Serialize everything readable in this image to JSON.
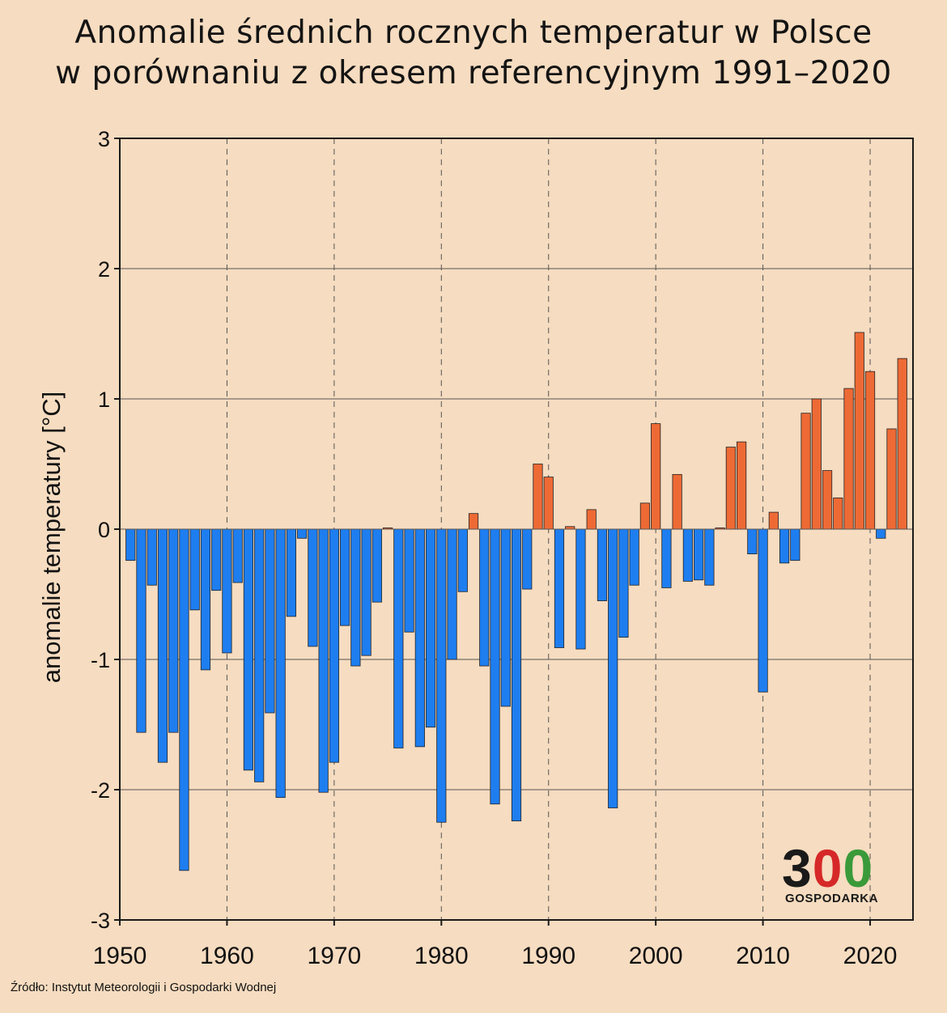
{
  "title_lines": [
    "Anomalie średnich rocznych temperatur w Polsce",
    "w porównaniu z okresem referencyjnym 1991–2020"
  ],
  "source": "Źródło: Instytut Meteorologii i Gospodarki Wodnej",
  "logo": {
    "digits": [
      "3",
      "0",
      "0"
    ],
    "digit_colors": [
      "#1a1a1a",
      "#d62828",
      "#3a9a3a"
    ],
    "label": "GOSPODARKA"
  },
  "colors": {
    "background": "#f6dcc0",
    "positive": "#ee6a35",
    "negative": "#1e7ef0",
    "bar_stroke": "#222222",
    "grid": "#555555",
    "axis": "#1a1a1a"
  },
  "chart_data": {
    "type": "bar",
    "title": "Anomalie średnich rocznych temperatur w Polsce w porównaniu z okresem referencyjnym 1991–2020",
    "xlabel": "",
    "ylabel": "anomalie temperatury [°C]",
    "ylim": [
      -3,
      3
    ],
    "xlim": [
      1950,
      2024
    ],
    "y_ticks": [
      3,
      2,
      1,
      0,
      -1,
      -2,
      -3
    ],
    "x_ticks": [
      1950,
      1960,
      1970,
      1980,
      1990,
      2000,
      2010,
      2020
    ],
    "grid": "horizontal solid, vertical dashed at decades",
    "x": [
      1951,
      1952,
      1953,
      1954,
      1955,
      1956,
      1957,
      1958,
      1959,
      1960,
      1961,
      1962,
      1963,
      1964,
      1965,
      1966,
      1967,
      1968,
      1969,
      1970,
      1971,
      1972,
      1973,
      1974,
      1975,
      1976,
      1977,
      1978,
      1979,
      1980,
      1981,
      1982,
      1983,
      1984,
      1985,
      1986,
      1987,
      1988,
      1989,
      1990,
      1991,
      1992,
      1993,
      1994,
      1995,
      1996,
      1997,
      1998,
      1999,
      2000,
      2001,
      2002,
      2003,
      2004,
      2005,
      2006,
      2007,
      2008,
      2009,
      2010,
      2011,
      2012,
      2013,
      2014,
      2015,
      2016,
      2017,
      2018,
      2019,
      2020,
      2021,
      2022,
      2023
    ],
    "values": [
      -0.24,
      -1.56,
      -0.43,
      -1.79,
      -1.56,
      -2.62,
      -0.62,
      -1.08,
      -0.47,
      -0.95,
      -0.41,
      -1.85,
      -1.94,
      -1.41,
      -2.06,
      -0.67,
      -0.07,
      -0.9,
      -2.02,
      -1.79,
      -0.74,
      -1.05,
      -0.97,
      -0.56,
      0.01,
      -1.68,
      -0.79,
      -1.67,
      -1.52,
      -2.25,
      -1.0,
      -0.48,
      0.12,
      -1.05,
      -2.11,
      -1.36,
      -2.24,
      -0.46,
      0.5,
      0.4,
      -0.91,
      0.02,
      -0.92,
      0.15,
      -0.55,
      -2.14,
      -0.83,
      -0.43,
      0.2,
      0.81,
      -0.45,
      0.42,
      -0.4,
      -0.39,
      -0.43,
      0.01,
      0.63,
      0.67,
      -0.19,
      -1.25,
      0.13,
      -0.26,
      -0.24,
      0.89,
      1.0,
      0.45,
      0.24,
      1.08,
      1.51,
      1.21,
      -0.07,
      0.77,
      1.31
    ]
  }
}
